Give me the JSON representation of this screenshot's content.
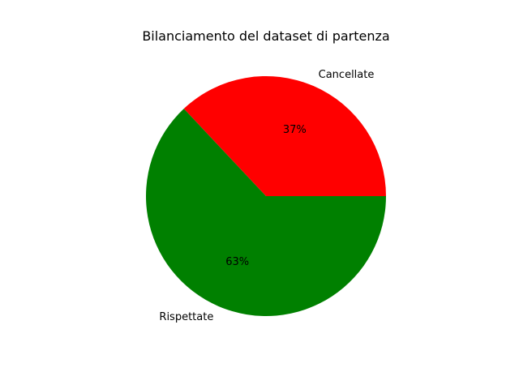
{
  "chart_data": {
    "type": "pie",
    "title": "Bilanciamento del dataset di partenza",
    "slices": [
      {
        "label": "Cancellate",
        "value": 37,
        "pct_label": "37%",
        "color": "#ff0000"
      },
      {
        "label": "Rispettate",
        "value": 63,
        "pct_label": "63%",
        "color": "#008000"
      }
    ],
    "start_angle_deg": 0,
    "direction": "counterclockwise"
  }
}
